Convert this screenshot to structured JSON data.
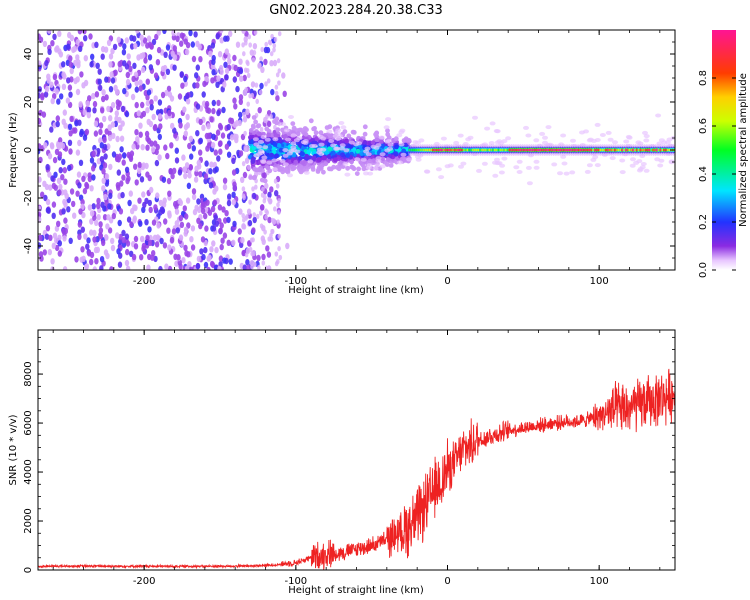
{
  "title": "GN02.2023.284.20.38.C33",
  "colors": {
    "snr_line": "#ee2222",
    "frame": "#000000",
    "background": "#ffffff"
  },
  "chart_data": [
    {
      "type": "heatmap",
      "xlabel": "Height of straight line (km)",
      "ylabel": "Frequency (Hz)",
      "xlim": [
        -270,
        150
      ],
      "ylim": [
        -50,
        50
      ],
      "x_ticks": [
        -200,
        -100,
        0,
        100
      ],
      "y_ticks": [
        -40,
        -20,
        0,
        20,
        40
      ],
      "grid": false,
      "colorbar": {
        "label": "Normalized spectral amplitude",
        "range": [
          0.0,
          1.0
        ],
        "ticks": [
          0.0,
          0.2,
          0.4,
          0.6,
          0.8
        ],
        "colormap": "rainbow (white-violet-blue-cyan-green-yellow-orange-red-pink)"
      },
      "features": {
        "noise_region_x": [
          -270,
          -115
        ],
        "noise_amplitude": 0.15,
        "burst_region_x": [
          -130,
          -25
        ],
        "burst_freq_halfwidth_hz": 8,
        "burst_amplitude": 0.35,
        "tone_frequency_hz": 0,
        "tone_region_x": [
          -25,
          150
        ],
        "tone_amplitude_max": 1.0
      }
    },
    {
      "type": "line",
      "xlabel": "Height of straight line (km)",
      "ylabel": "SNR (10 * v/v)",
      "xlim": [
        -270,
        150
      ],
      "ylim": [
        0,
        9800
      ],
      "x_ticks": [
        -200,
        -100,
        0,
        100
      ],
      "y_ticks": [
        0,
        2000,
        4000,
        6000,
        8000
      ],
      "grid": false,
      "series": [
        {
          "x": [
            -270,
            -240,
            -200,
            -160,
            -130,
            -115,
            -100,
            -90,
            -80,
            -70,
            -60,
            -50,
            -40,
            -30,
            -20,
            -15,
            -10,
            -5,
            0,
            5,
            10,
            20,
            30,
            40,
            50,
            60,
            70,
            80,
            90,
            100,
            110,
            120,
            130,
            140,
            150
          ],
          "y": [
            150,
            160,
            150,
            150,
            160,
            200,
            300,
            500,
            650,
            700,
            850,
            1000,
            1250,
            1600,
            2100,
            2600,
            3100,
            3600,
            4100,
            4400,
            4900,
            5300,
            5500,
            5700,
            5800,
            5900,
            6000,
            6050,
            6100,
            6300,
            6500,
            6600,
            6800,
            7000,
            7200
          ]
        }
      ]
    }
  ]
}
